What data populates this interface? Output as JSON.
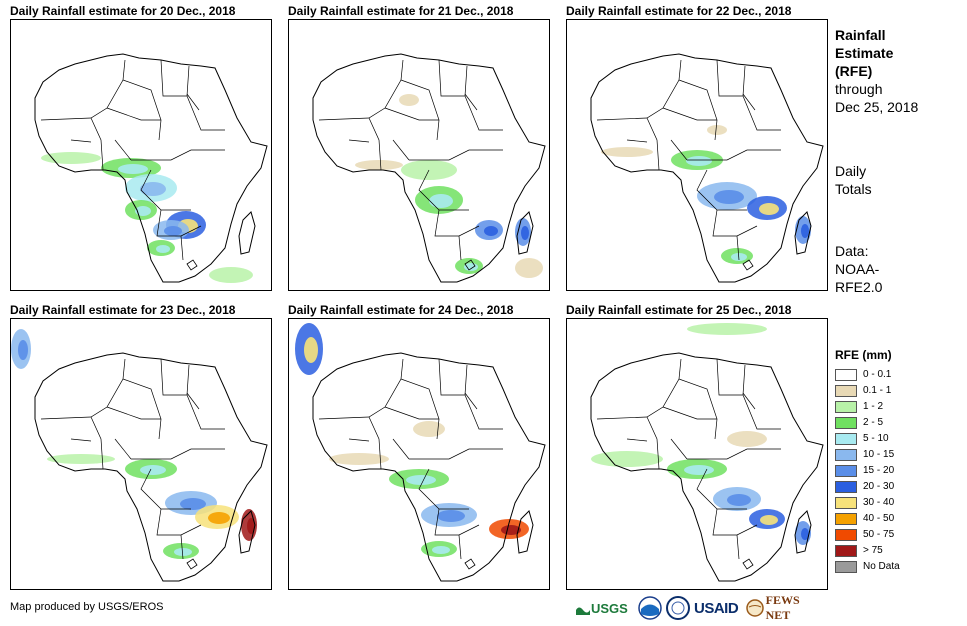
{
  "panels": [
    {
      "title": "Daily Rainfall estimate for 20 Dec., 2018"
    },
    {
      "title": "Daily Rainfall estimate for 21 Dec., 2018"
    },
    {
      "title": "Daily Rainfall estimate for 22 Dec., 2018"
    },
    {
      "title": "Daily Rainfall estimate for 23 Dec., 2018"
    },
    {
      "title": "Daily Rainfall estimate for 24 Dec., 2018"
    },
    {
      "title": "Daily Rainfall estimate for 25 Dec., 2018"
    }
  ],
  "info": {
    "heading_line1": "Rainfall",
    "heading_line2": "Estimate",
    "heading_line3": "(RFE)",
    "through_line1": "through",
    "through_line2": "Dec 25, 2018",
    "totals_line1": "Daily",
    "totals_line2": "Totals",
    "data_line1": "Data:",
    "data_line2": "NOAA-",
    "data_line3": "RFE2.0"
  },
  "legend": {
    "title": "RFE (mm)",
    "items": [
      {
        "label": "0 - 0.1",
        "color": "#ffffff"
      },
      {
        "label": "0.1 - 1",
        "color": "#e8d9b5"
      },
      {
        "label": "1 - 2",
        "color": "#b8f2a8"
      },
      {
        "label": "2 - 5",
        "color": "#70e060"
      },
      {
        "label": "5 - 10",
        "color": "#a8eaf0"
      },
      {
        "label": "10 - 15",
        "color": "#8ab8ee"
      },
      {
        "label": "15 - 20",
        "color": "#5a8ee8"
      },
      {
        "label": "20 - 30",
        "color": "#2b5fe0"
      },
      {
        "label": "30 - 40",
        "color": "#f7e27a"
      },
      {
        "label": "40 - 50",
        "color": "#f5a100"
      },
      {
        "label": "50 - 75",
        "color": "#f04a00"
      },
      {
        "label": "> 75",
        "color": "#a01818"
      },
      {
        "label": "No Data",
        "color": "#9a9a9a"
      }
    ]
  },
  "credit": "Map produced by USGS/EROS",
  "logos": {
    "usgs": "USGS",
    "usaid": "USAID",
    "fewsnet": "FEWS NET",
    "noaa_icon": "noaa-logo-icon",
    "seal_icon": "state-dept-seal-icon"
  }
}
